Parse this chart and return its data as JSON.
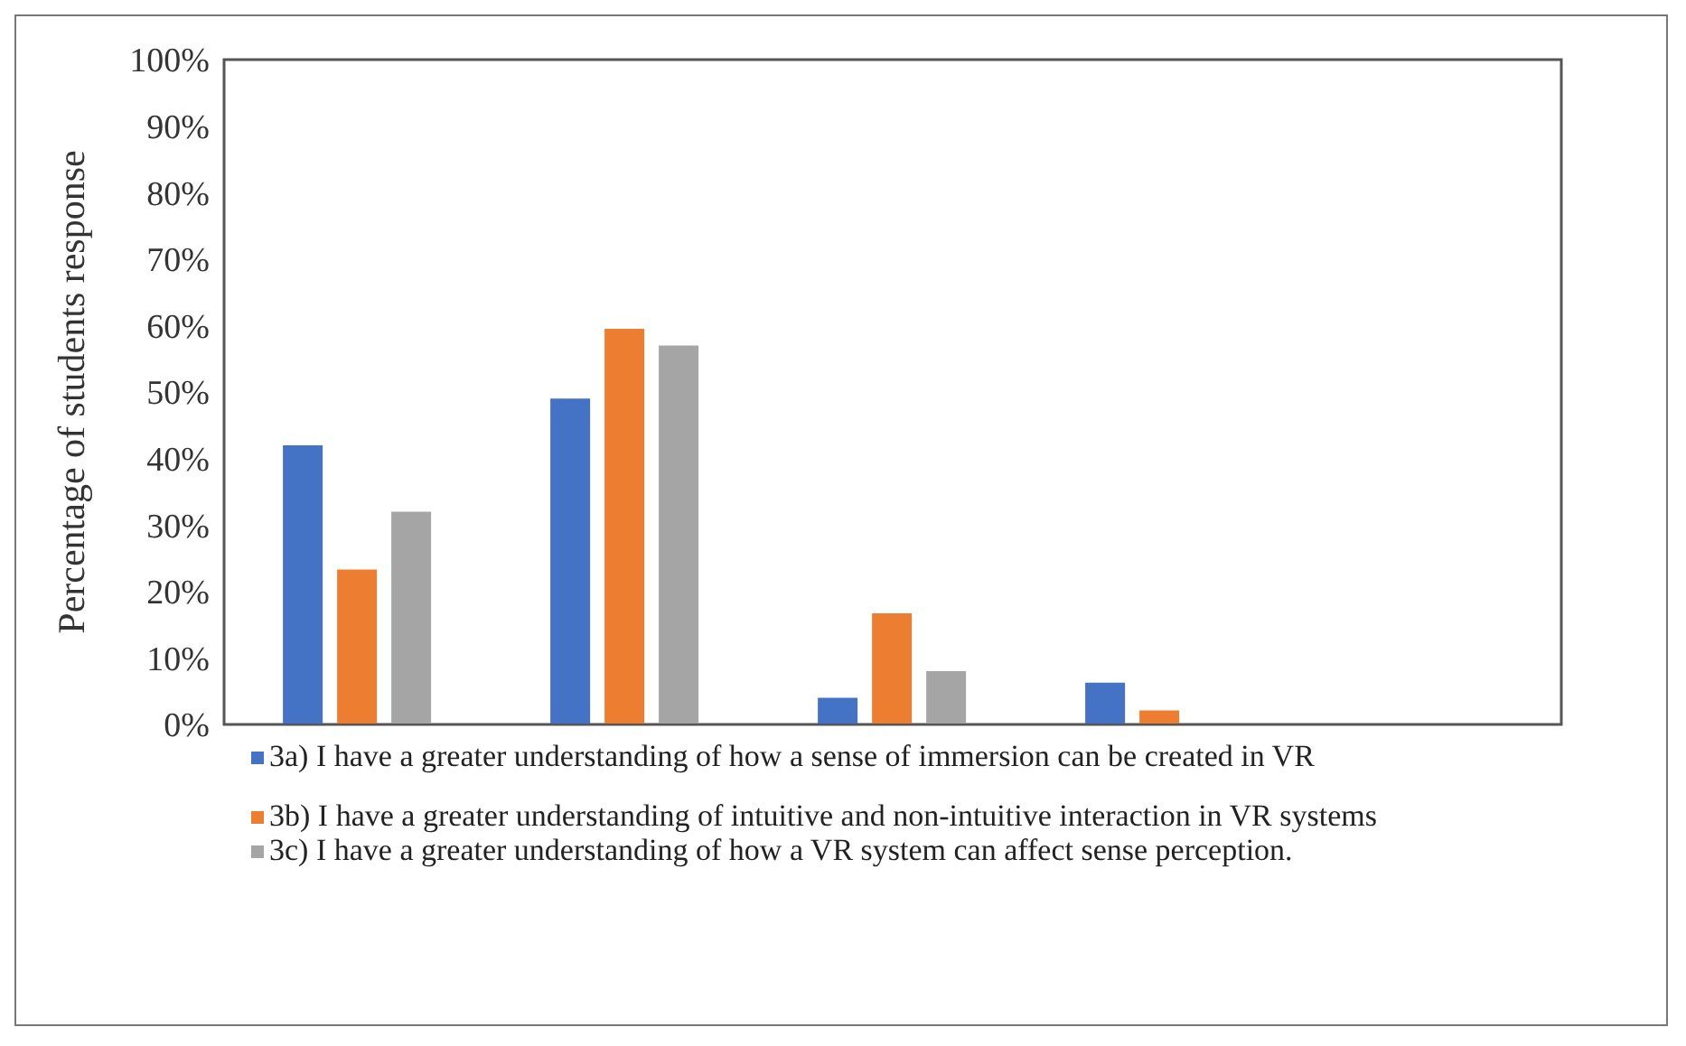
{
  "chart_data": {
    "type": "bar",
    "ylabel": "Percentage of students response",
    "categories": [
      null,
      null,
      null,
      null,
      null
    ],
    "series": [
      {
        "name": "3a)  I have a greater understanding of how a sense of immersion can be created in VR",
        "color": "#4472c4",
        "values": [
          42,
          49,
          4,
          6.3,
          0
        ]
      },
      {
        "name": "3b) I have a greater understanding of intuitive and non-intuitive interaction in VR systems",
        "color": "#ed7d31",
        "values": [
          23.3,
          59.5,
          16.7,
          2.1,
          0
        ]
      },
      {
        "name": "3c) I have a greater understanding of how a VR system can affect sense perception.",
        "color": "#a5a5a5",
        "values": [
          32,
          57,
          8,
          0,
          0
        ]
      }
    ],
    "ylim": [
      0,
      100
    ],
    "yticks": [
      {
        "value": 0,
        "label": "0%"
      },
      {
        "value": 10,
        "label": "10%"
      },
      {
        "value": 20,
        "label": "20%"
      },
      {
        "value": 30,
        "label": "30%"
      },
      {
        "value": 40,
        "label": "40%"
      },
      {
        "value": 50,
        "label": "50%"
      },
      {
        "value": 60,
        "label": "60%"
      },
      {
        "value": 70,
        "label": "70%"
      },
      {
        "value": 80,
        "label": "80%"
      },
      {
        "value": 90,
        "label": "90%"
      },
      {
        "value": 100,
        "label": "100%"
      }
    ],
    "grid": false,
    "legend": "bottom"
  }
}
